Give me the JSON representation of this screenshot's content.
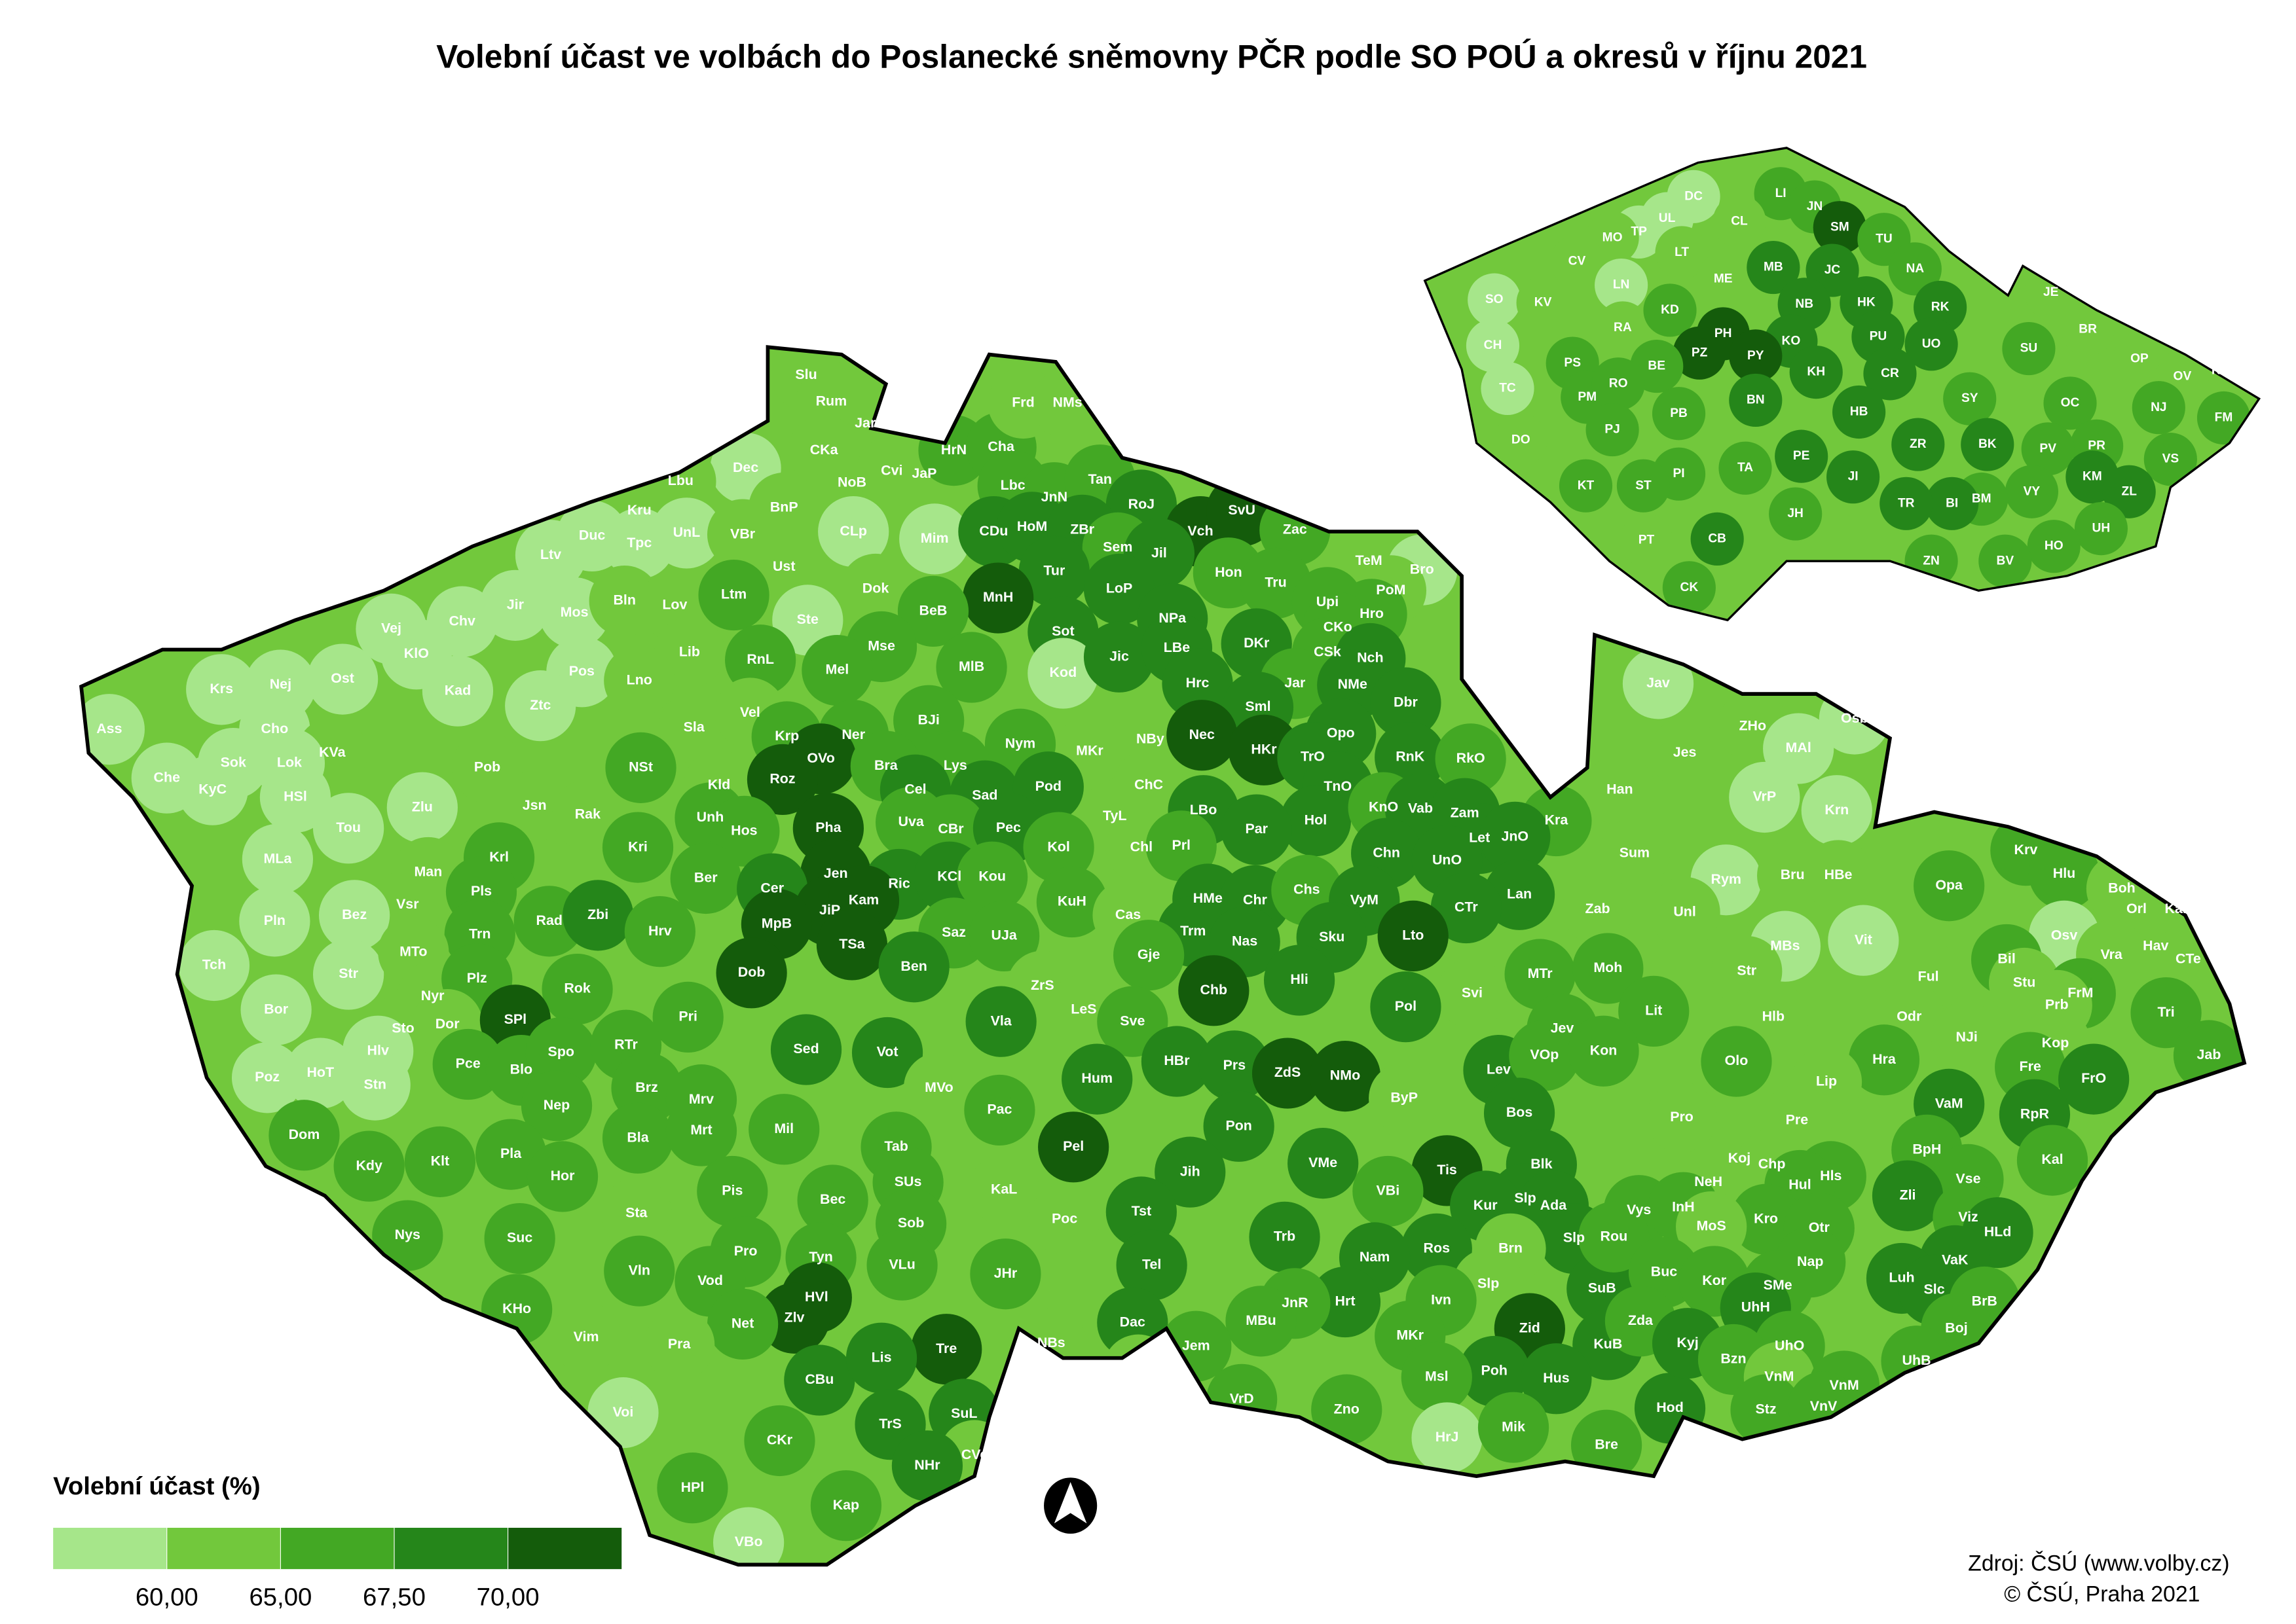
{
  "title": "Volební účast ve volbách do Poslanecké sněmovny PČR podle SO POÚ a okresů v říjnu 2021",
  "legend": {
    "title": "Volební účast (%)",
    "breaks": [
      {
        "value": 60,
        "label": "60,00"
      },
      {
        "value": 65,
        "label": "65,00"
      },
      {
        "value": 67.5,
        "label": "67,50"
      },
      {
        "value": 70,
        "label": "70,00"
      }
    ],
    "colors": [
      "#a6e68a",
      "#72c83c",
      "#43a824",
      "#25861a",
      "#145c0b"
    ]
  },
  "districts": {
    "codes": [
      "Slu",
      "Rum",
      "Jar",
      "CKa",
      "Dec",
      "NoB",
      "Cvi",
      "JaP",
      "HrN",
      "Cha",
      "Frd",
      "NMs",
      "Lbu",
      "Kru",
      "Duc",
      "Tpc",
      "UnL",
      "VBr",
      "BnP",
      "CLp",
      "Mim",
      "Lbc",
      "JnN",
      "Tan",
      "RoJ",
      "Vch",
      "SvU",
      "CDu",
      "HoM",
      "ZBr",
      "Sem",
      "Jil",
      "Zac",
      "Ltv",
      "Ust",
      "Dok",
      "Tur",
      "Hon",
      "TeM",
      "Bro",
      "PoM",
      "Vej",
      "Jir",
      "Mos",
      "Bln",
      "Lov",
      "Ltm",
      "MnH",
      "LoP",
      "Tru",
      "Upi",
      "Hro",
      "Chv",
      "KlO",
      "Ste",
      "BeB",
      "Sot",
      "NPa",
      "CKo",
      "Kod",
      "Lib",
      "RnL",
      "Mse",
      "Jic",
      "LBe",
      "DKr",
      "CSk",
      "Nch",
      "Krs",
      "Nej",
      "Ost",
      "Kad",
      "Pos",
      "Lno",
      "Mel",
      "MlB",
      "Hrc",
      "Jar",
      "NMe",
      "Ztc",
      "Sml",
      "Dbr",
      "Ass",
      "Cho",
      "Sla",
      "Vel",
      "BJi",
      "MKr",
      "NBy",
      "Nec",
      "Opo",
      "KVa",
      "Lok",
      "Sok",
      "Che",
      "Pob",
      "NSt",
      "Krp",
      "Ner",
      "Nym",
      "HKr",
      "TrO",
      "RnK",
      "RkO",
      "KyC",
      "HSl",
      "Kld",
      "OVo",
      "Bra",
      "Lys",
      "ChC",
      "TnO",
      "Roz",
      "Cel",
      "Sad",
      "Pod",
      "Jsn",
      "Zlu",
      "Tou",
      "Rak",
      "Unh",
      "Pha",
      "Uva",
      "CBr",
      "LBo",
      "Hol",
      "KnO",
      "Vab",
      "Zam",
      "Kra",
      "Hos",
      "Pec",
      "TyL",
      "Let",
      "JnO",
      "MLa",
      "Kri",
      "Kol",
      "Chl",
      "Prl",
      "Par",
      "Chn",
      "UnO",
      "Krl",
      "Man",
      "Ber",
      "Jen",
      "Cer",
      "Ric",
      "KCl",
      "Kou",
      "Lan",
      "Pls",
      "Vsr",
      "JiP",
      "Kam",
      "KuH",
      "HMe",
      "Chr",
      "Chs",
      "VyM",
      "CTr",
      "Pln",
      "Bez",
      "Rad",
      "Zbi",
      "MpB",
      "Cas",
      "Trm",
      "Lto",
      "Hrv",
      "TSa",
      "Saz",
      "UJa",
      "Nas",
      "Sku",
      "Trn",
      "Str",
      "MTo",
      "Dob",
      "Ben",
      "Gje",
      "Tch",
      "Nyr",
      "Plz",
      "Rok",
      "ZrS",
      "Hli",
      "MTr",
      "Svi",
      "Chb",
      "LeS",
      "Bor",
      "Sto",
      "Dor",
      "SPl",
      "Pri",
      "Sve",
      "Pol",
      "Jev",
      "Hlv",
      "Pce",
      "Blo",
      "Spo",
      "RTr",
      "Sed",
      "Vot",
      "Vla",
      "HBr",
      "Prs",
      "ZdS",
      "NMo",
      "Lev",
      "VOp",
      "Poz",
      "HoT",
      "Stn",
      "Brz",
      "MVo",
      "Hum",
      "Mrv",
      "Nep",
      "ByP",
      "Bos",
      "Pac",
      "Pon",
      "Dom",
      "Bla",
      "Mrt",
      "Mil",
      "Pel",
      "Tab",
      "Pla",
      "Blk",
      "Tis",
      "Kdy",
      "Klt",
      "Hor",
      "VMe",
      "Jih",
      "Pis",
      "KaL",
      "SUs",
      "Bec",
      "VBi",
      "Slp",
      "Kur",
      "Ada",
      "Sta",
      "Tst",
      "Poc",
      "Sob",
      "Nys",
      "Suc",
      "Trb",
      "Slp",
      "Ros",
      "Brn",
      "Pro",
      "Tyn",
      "VLu",
      "Nam",
      "Tel",
      "Vln",
      "Vod",
      "JHr",
      "Slp",
      "SuB",
      "HVl",
      "KHo",
      "Hrt",
      "JnR",
      "Ivn",
      "Zlv",
      "Net",
      "Dac",
      "MBu",
      "Vim",
      "Pra",
      "Zid",
      "Tre",
      "Jem",
      "MKr",
      "KuB",
      "CBu",
      "Lis",
      "NBs",
      "Slv",
      "Poh",
      "Hus",
      "Msl",
      "VrD",
      "Zno",
      "HrJ",
      "Hod",
      "Mik",
      "Voi",
      "TrS",
      "SuL",
      "CKr",
      "Bre",
      "CVe",
      "NHr",
      "HPl",
      "Kap",
      "VBo",
      "Jav",
      "ZHo",
      "Osb",
      "Jes",
      "MAl",
      "Han",
      "VrP",
      "Krn",
      "Sum",
      "Rym",
      "Bru",
      "HBe",
      "Krv",
      "Hlu",
      "Opa",
      "Boh",
      "Orl",
      "Kar",
      "Zab",
      "Unl",
      "Vit",
      "Osv",
      "Hav",
      "MBs",
      "Vra",
      "CTe",
      "Moh",
      "Str",
      "Bil",
      "Ful",
      "Stu",
      "FrM",
      "Prb",
      "Lit",
      "Hlb",
      "Odr",
      "NJi",
      "Kop",
      "Tri",
      "Jab",
      "Kon",
      "Olo",
      "Hra",
      "Fre",
      "FrO",
      "Lip",
      "VaM",
      "RpR",
      "Pro",
      "Pre",
      "BpH",
      "Kal",
      "Koj",
      "Chp",
      "Hls",
      "Vse",
      "NeH",
      "Hul",
      "Vys",
      "InH",
      "Zli",
      "Viz",
      "Kro",
      "Otr",
      "MoS",
      "HLd",
      "Rou",
      "Nap",
      "VaK",
      "Buc",
      "Luh",
      "Kor",
      "SMe",
      "Slc",
      "UhH",
      "BrB",
      "Zda",
      "Boj",
      "Kyj",
      "UhO",
      "UhB",
      "Bzn",
      "VnM",
      "VnM",
      "Stz",
      "VnV"
    ],
    "turnout": [
      62,
      62,
      62,
      62,
      58,
      62,
      62,
      62,
      66,
      66,
      62,
      62,
      62,
      62,
      58,
      58,
      58,
      62,
      62,
      58,
      58,
      66,
      66,
      66,
      69,
      72,
      72,
      69,
      69,
      69,
      66,
      69,
      66,
      58,
      62,
      62,
      69,
      66,
      62,
      58,
      62,
      58,
      58,
      58,
      62,
      62,
      66,
      72,
      69,
      66,
      66,
      66,
      58,
      58,
      58,
      66,
      69,
      69,
      66,
      58,
      62,
      66,
      66,
      69,
      69,
      69,
      66,
      69,
      58,
      58,
      58,
      58,
      58,
      62,
      66,
      66,
      69,
      66,
      69,
      58,
      69,
      69,
      58,
      58,
      62,
      62,
      66,
      62,
      62,
      72,
      69,
      62,
      58,
      58,
      58,
      62,
      66,
      66,
      66,
      66,
      72,
      69,
      69,
      66,
      58,
      58,
      62,
      72,
      66,
      66,
      62,
      69,
      72,
      69,
      69,
      69,
      62,
      58,
      58,
      62,
      66,
      72,
      66,
      66,
      69,
      69,
      66,
      69,
      69,
      66,
      66,
      69,
      62,
      69,
      69,
      58,
      66,
      66,
      62,
      66,
      69,
      69,
      69,
      66,
      62,
      66,
      72,
      69,
      69,
      69,
      66,
      69,
      66,
      62,
      72,
      72,
      66,
      69,
      69,
      66,
      69,
      69,
      58,
      58,
      66,
      69,
      72,
      62,
      69,
      72,
      66,
      72,
      66,
      66,
      69,
      69,
      66,
      58,
      62,
      72,
      69,
      66,
      58,
      62,
      66,
      66,
      62,
      69,
      66,
      62,
      72,
      62,
      58,
      62,
      62,
      72,
      66,
      66,
      69,
      66,
      58,
      66,
      66,
      66,
      66,
      69,
      69,
      69,
      69,
      69,
      72,
      72,
      69,
      66,
      58,
      58,
      58,
      66,
      62,
      69,
      66,
      66,
      62,
      69,
      66,
      69,
      66,
      66,
      66,
      66,
      72,
      66,
      66,
      69,
      72,
      66,
      66,
      66,
      69,
      69,
      66,
      62,
      66,
      66,
      66,
      69,
      69,
      69,
      62,
      69,
      62,
      66,
      66,
      66,
      69,
      69,
      69,
      62,
      66,
      66,
      66,
      69,
      69,
      66,
      66,
      66,
      62,
      69,
      72,
      66,
      69,
      66,
      66,
      72,
      66,
      69,
      66,
      62,
      62,
      72,
      72,
      66,
      66,
      69,
      69,
      69,
      62,
      62,
      69,
      69,
      66,
      66,
      66,
      58,
      69,
      66,
      58,
      69,
      69,
      66,
      66,
      62,
      69,
      66,
      66,
      58,
      58,
      62,
      58,
      62,
      58,
      62,
      58,
      58,
      62,
      58,
      62,
      62,
      66,
      66,
      66,
      62,
      62,
      62,
      62,
      62,
      58,
      58,
      62,
      58,
      62,
      62,
      66,
      62,
      66,
      62,
      62,
      66,
      62,
      66,
      62,
      62,
      62,
      62,
      66,
      66,
      66,
      66,
      66,
      66,
      69,
      62,
      69,
      69,
      62,
      62,
      66,
      66,
      62,
      62,
      66,
      66,
      62,
      66,
      66,
      66,
      69,
      66,
      66,
      66,
      62,
      69,
      66,
      66,
      69,
      66,
      69,
      66,
      66,
      69,
      69,
      66,
      66,
      66,
      69,
      66,
      66,
      66,
      62,
      66,
      66,
      66
    ]
  },
  "okresy": {
    "codes": [
      "DC",
      "LI",
      "JN",
      "TP",
      "UL",
      "CL",
      "SM",
      "MO",
      "CV",
      "LT",
      "ME",
      "JC",
      "TU",
      "MB",
      "NA",
      "LN",
      "SO",
      "KV",
      "RA",
      "KD",
      "NB",
      "HK",
      "RK",
      "JE",
      "PH",
      "KO",
      "PU",
      "UO",
      "BR",
      "CH",
      "PZ",
      "PY",
      "SU",
      "OP",
      "KI",
      "OV",
      "PS",
      "BE",
      "KH",
      "CR",
      "TC",
      "PM",
      "RO",
      "BN",
      "SY",
      "OC",
      "NJ",
      "FM",
      "PB",
      "HB",
      "PJ",
      "PR",
      "DO",
      "BK",
      "PV",
      "ZR",
      "TA",
      "PE",
      "JI",
      "VS",
      "PI",
      "KM",
      "KT",
      "ST",
      "VY",
      "BM",
      "BI",
      "ZL",
      "TR",
      "JH",
      "UH",
      "PT",
      "CB",
      "HO",
      "ZN",
      "BV",
      "CK"
    ],
    "turnout": [
      58,
      66,
      66,
      58,
      58,
      62,
      72,
      62,
      62,
      62,
      62,
      69,
      66,
      69,
      66,
      58,
      58,
      62,
      62,
      66,
      69,
      69,
      69,
      62,
      72,
      69,
      69,
      69,
      62,
      58,
      72,
      72,
      66,
      62,
      62,
      62,
      66,
      66,
      69,
      69,
      58,
      66,
      66,
      69,
      66,
      66,
      66,
      66,
      66,
      69,
      66,
      66,
      62,
      69,
      66,
      69,
      66,
      69,
      69,
      66,
      66,
      69,
      66,
      66,
      66,
      66,
      69,
      69,
      69,
      66,
      66,
      62,
      69,
      66,
      66,
      66,
      66
    ]
  },
  "source": [
    "Zdroj: ČSÚ (www.volby.cz)",
    "© ČSÚ, Praha 2021"
  ]
}
